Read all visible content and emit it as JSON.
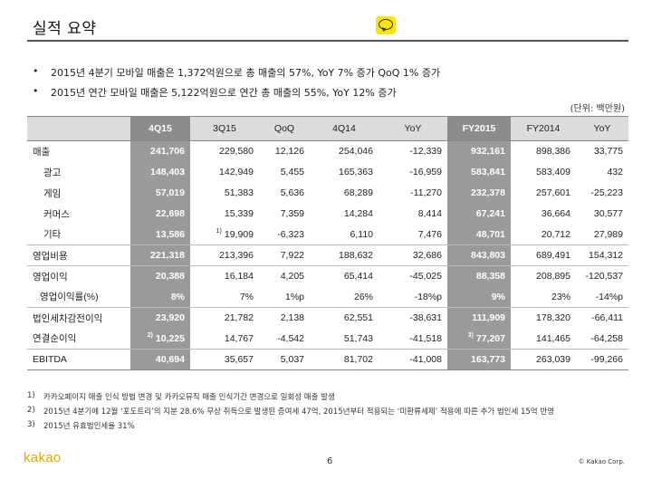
{
  "title": "실적 요약",
  "bullets": [
    "2015년 4분기 모바일 매출은 1,372억원으로 총 매출의 57%,  YoY 7% 증가 QoQ 1% 증가",
    "2015년 연간 모바일 매출은 5,122억원으로 연간 총 매출의 55%,  YoY 12% 증가"
  ],
  "bullet_marker": "•",
  "unit": "(단위: 백만원)",
  "table": {
    "headers": [
      "",
      "4Q15",
      "3Q15",
      "QoQ",
      "4Q14",
      "YoY",
      "FY2015",
      "FY2014",
      "YoY"
    ],
    "rows": [
      {
        "label": "매출",
        "note": "",
        "cells": [
          "241,706",
          "229,580",
          "12,126",
          "254,046",
          "-12,339",
          "932,161",
          "898,386",
          "33,775"
        ]
      },
      {
        "label": "광고",
        "note": "",
        "cells": [
          "148,403",
          "142,949",
          "5,455",
          "165,363",
          "-16,959",
          "583,841",
          "583,409",
          "432"
        ]
      },
      {
        "label": "게임",
        "note": "",
        "cells": [
          "57,019",
          "51,383",
          "5,636",
          "68,289",
          "-11,270",
          "232,378",
          "257,601",
          "-25,223"
        ]
      },
      {
        "label": "커머스",
        "note": "",
        "cells": [
          "22,698",
          "15,339",
          "7,359",
          "14,284",
          "8,414",
          "67,241",
          "36,664",
          "30,577"
        ]
      },
      {
        "label": "기타",
        "note": "",
        "cells": [
          "13,586",
          "19,909",
          "-6,323",
          "6,110",
          "7,476",
          "48,701",
          "20,712",
          "27,989"
        ],
        "cell_notes": [
          "",
          "1)",
          "",
          "",
          "",
          "",
          "",
          ""
        ]
      },
      {
        "label": "영업비용",
        "note": "",
        "cells": [
          "221,318",
          "213,396",
          "7,922",
          "188,632",
          "32,686",
          "843,803",
          "689,491",
          "154,312"
        ]
      },
      {
        "label": "영업이익",
        "note": "",
        "cells": [
          "20,388",
          "16,184",
          "4,205",
          "65,414",
          "-45,025",
          "88,358",
          "208,895",
          "-120,537"
        ]
      },
      {
        "label": "영업이익률(%)",
        "note": "",
        "cells": [
          "8%",
          "7%",
          "1%p",
          "26%",
          "-18%p",
          "9%",
          "23%",
          "-14%p"
        ]
      },
      {
        "label": "법인세차감전이익",
        "note": "",
        "cells": [
          "23,920",
          "21,782",
          "2,138",
          "62,551",
          "-38,631",
          "111,909",
          "178,320",
          "-66,411"
        ]
      },
      {
        "label": "연결순이익",
        "note": "",
        "cells": [
          "10,225",
          "14,767",
          "-4,542",
          "51,743",
          "-41,518",
          "77,207",
          "141,465",
          "-64,258"
        ],
        "cell_notes": [
          "2)",
          "",
          "",
          "",
          "",
          "3)",
          "",
          ""
        ]
      },
      {
        "label": "EBITDA",
        "note": "",
        "cells": [
          "40,694",
          "35,657",
          "5,037",
          "81,702",
          "-41,008",
          "163,773",
          "263,039",
          "-99,266"
        ]
      }
    ]
  },
  "footnotes": [
    {
      "num": "1)",
      "text": "카카오페이지 매출 인식 방법 변경 및 카카오뮤직 매출 인식기간 변경으로 일회성 매출 발생"
    },
    {
      "num": "2)",
      "text": "2015년 4분기에 12월 ‘포도트리’의 지분 28.6% 무상 취득으로 발생된 증여세 47억, 2015년부터 적용되는 ‘미환류세제’ 적용에 따른 추가 법인세 15억 반영"
    },
    {
      "num": "3)",
      "text": "2015년 유효법인세율 31%"
    }
  ],
  "footer": {
    "logo": "kakao",
    "page": "6",
    "copyright": "© Kakao Corp."
  },
  "colors": {
    "highlight_column": "#9a9a9a",
    "header_row": "#dcdcdc",
    "logo": "#e8a800",
    "talk_icon": "#f7e600"
  },
  "icons": [
    "kakaotalk-icon"
  ]
}
